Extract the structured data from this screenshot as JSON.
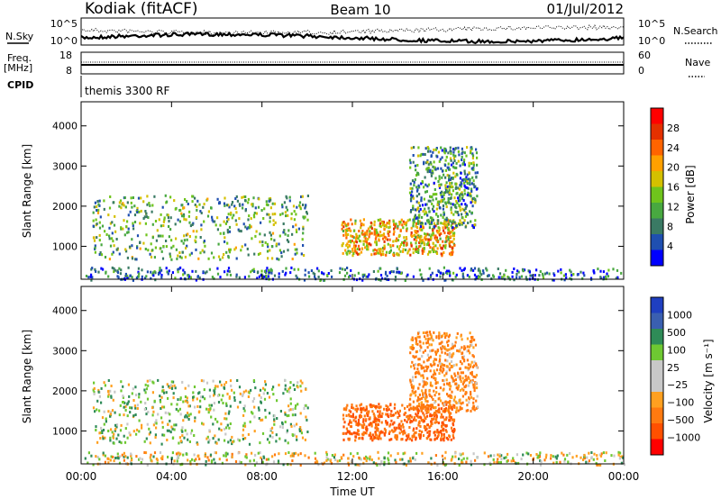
{
  "header": {
    "station": "Kodiak (fitACF)",
    "beam": "Beam 10",
    "date": "01/Jul/2012"
  },
  "status_panel": {
    "nsky_label": "N.Sky",
    "nsearch_label": "N.Search",
    "noise_ticks": [
      "10^5",
      "10^0"
    ],
    "freq_label": "Freq.",
    "freq_unit": "[MHz]",
    "freq_ticks": [
      "18",
      "8"
    ],
    "nave_label": "Nave",
    "nave_ticks": [
      "60",
      "0"
    ],
    "cpid_label": "CPID",
    "cpid_value": "themis 3300 RF"
  },
  "colors": {
    "power_scale": [
      "#0000ff",
      "#1f4fb0",
      "#3a7a64",
      "#48a840",
      "#6fc41c",
      "#d4c000",
      "#ffa000",
      "#ff6400",
      "#e43000",
      "#ff0000"
    ],
    "velocity_scale": [
      "#ff0000",
      "#ff5000",
      "#ff7a10",
      "#ffa020",
      "#c8c8c8",
      "#c8c8c8",
      "#6ec832",
      "#2e8b57",
      "#3a5fb0",
      "#1f3fc0"
    ]
  },
  "chart_data": [
    {
      "type": "heatmap",
      "name": "power",
      "xlabel": "Time UT",
      "ylabel": "Slant Range [km]",
      "x_ticks": [
        "00:00",
        "04:00",
        "08:00",
        "12:00",
        "16:00",
        "20:00",
        "00:00"
      ],
      "x_range_hours": [
        0,
        24
      ],
      "y_ticks": [
        1000,
        2000,
        3000,
        4000
      ],
      "ylim": [
        180,
        4600
      ],
      "colorbar_label": "Power [dB]",
      "colorbar_ticks": [
        4,
        8,
        12,
        16,
        20,
        24,
        28
      ],
      "colorbar_range": [
        0,
        32
      ],
      "echo_regions": [
        {
          "t": [
            0.5,
            10.0
          ],
          "range_km": [
            700,
            2300
          ],
          "power_db": 12
        },
        {
          "t": [
            11.5,
            16.5
          ],
          "range_km": [
            800,
            1700
          ],
          "power_db": 20
        },
        {
          "t": [
            14.5,
            17.5
          ],
          "range_km": [
            1500,
            3500
          ],
          "power_db": 10
        },
        {
          "t": [
            0.0,
            24.0
          ],
          "range_km": [
            180,
            500
          ],
          "power_db": 6
        }
      ]
    },
    {
      "type": "heatmap",
      "name": "velocity",
      "xlabel": "Time UT",
      "ylabel": "Slant Range [km]",
      "x_ticks": [
        "00:00",
        "04:00",
        "08:00",
        "12:00",
        "16:00",
        "20:00",
        "00:00"
      ],
      "x_range_hours": [
        0,
        24
      ],
      "y_ticks": [
        1000,
        2000,
        3000,
        4000
      ],
      "ylim": [
        180,
        4600
      ],
      "colorbar_label": "Velocity [m s⁻¹]",
      "colorbar_ticks": [
        "1000",
        "500",
        "100",
        "25",
        "−25",
        "−100",
        "−500",
        "−1000"
      ],
      "echo_regions": [
        {
          "t": [
            0.5,
            10.0
          ],
          "range_km": [
            700,
            2300
          ],
          "velocity_ms": 50
        },
        {
          "t": [
            11.5,
            16.5
          ],
          "range_km": [
            800,
            1700
          ],
          "velocity_ms": -300
        },
        {
          "t": [
            14.5,
            17.5
          ],
          "range_km": [
            1500,
            3500
          ],
          "velocity_ms": -150
        },
        {
          "t": [
            0.0,
            24.0
          ],
          "range_km": [
            180,
            500
          ],
          "velocity_ms": 0
        }
      ]
    }
  ]
}
